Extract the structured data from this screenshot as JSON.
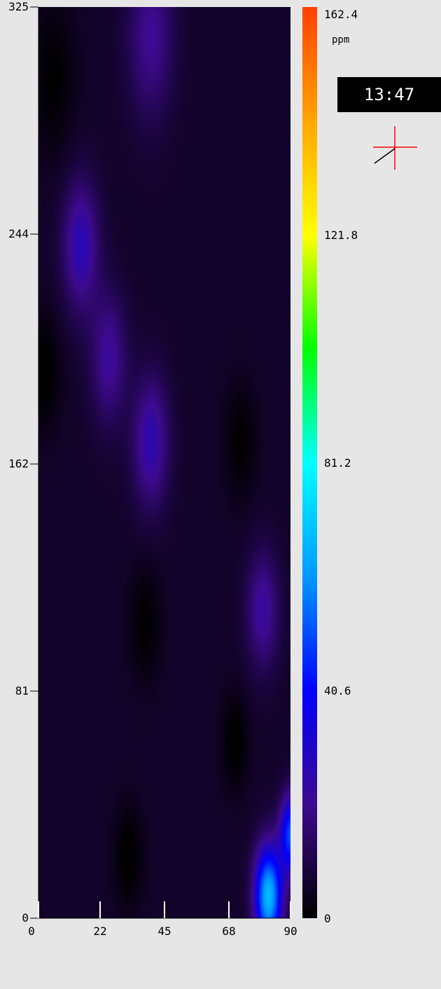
{
  "time": "13:47",
  "units": "ppm",
  "chart_data": {
    "type": "heatmap",
    "title": "",
    "xlabel": "",
    "ylabel": "",
    "xlim": [
      0,
      90
    ],
    "ylim": [
      0,
      325
    ],
    "x_ticks": [
      0,
      22,
      45,
      68,
      90
    ],
    "y_ticks": [
      0,
      81,
      162,
      244,
      325
    ],
    "colorbar": {
      "min": 0,
      "max": 162.4,
      "ticks": [
        0,
        40.6,
        81.2,
        121.8,
        162.4
      ],
      "units": "ppm",
      "colormap": [
        "#000000",
        "#3d0a8f",
        "#0000ff",
        "#0099ff",
        "#00ffff",
        "#00ff00",
        "#ffff00",
        "#ffa500",
        "#ff4000"
      ]
    },
    "background_level": 6,
    "hotspots": [
      {
        "x": 25,
        "y": 200,
        "value": 16,
        "spread": 20
      },
      {
        "x": 15,
        "y": 240,
        "value": 21,
        "spread": 20
      },
      {
        "x": 40,
        "y": 315,
        "value": 15,
        "spread": 25
      },
      {
        "x": 40,
        "y": 170,
        "value": 20,
        "spread": 20
      },
      {
        "x": 80,
        "y": 110,
        "value": 17,
        "spread": 18
      },
      {
        "x": 82,
        "y": 8,
        "value": 62,
        "spread": 15
      },
      {
        "x": 90,
        "y": 30,
        "value": 44,
        "spread": 12
      }
    ],
    "cold_spots": [
      {
        "x": 5,
        "y": 300,
        "value": -6,
        "spread": 25
      },
      {
        "x": 2,
        "y": 195,
        "value": -7,
        "spread": 18
      },
      {
        "x": 72,
        "y": 170,
        "value": -6,
        "spread": 18
      },
      {
        "x": 38,
        "y": 105,
        "value": -6,
        "spread": 18
      },
      {
        "x": 70,
        "y": 63,
        "value": -7,
        "spread": 15
      },
      {
        "x": 32,
        "y": 22,
        "value": -7,
        "spread": 16
      }
    ]
  }
}
